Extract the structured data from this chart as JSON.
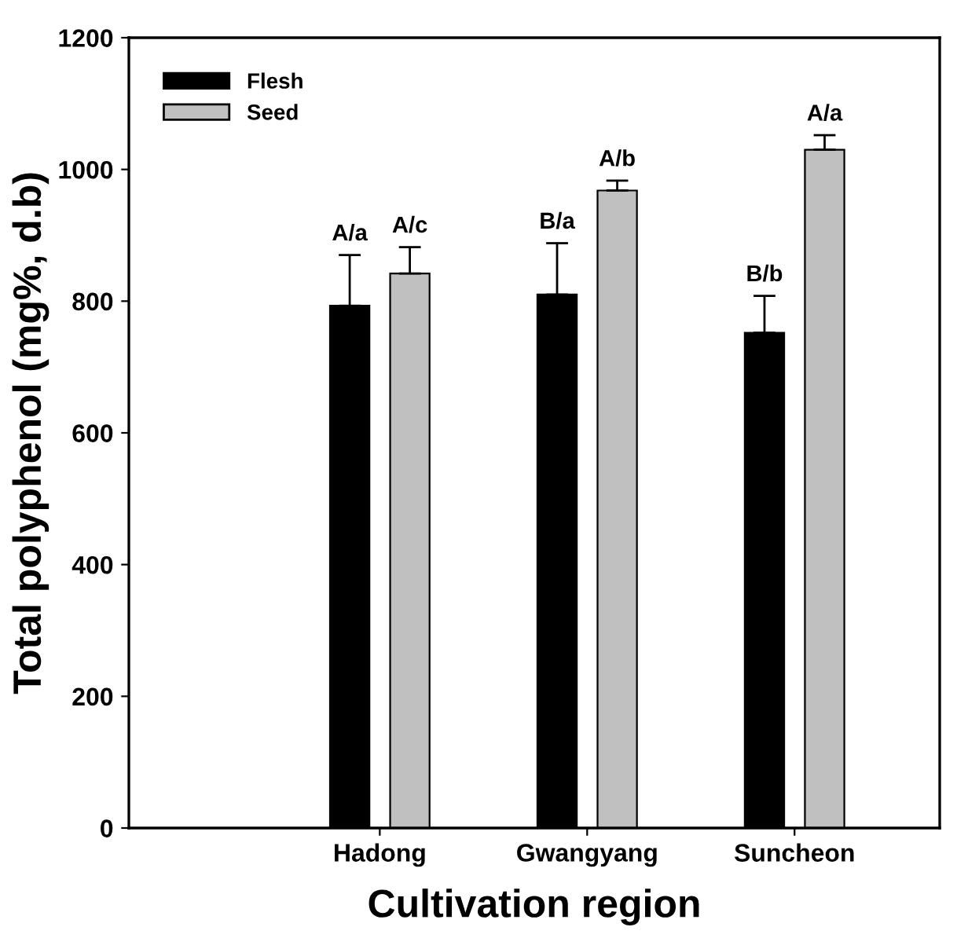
{
  "chart_data": {
    "type": "bar",
    "xlabel": "Cultivation region",
    "ylabel": "Total polyphenol (mg%, d.b)",
    "categories": [
      "Hadong",
      "Gwangyang",
      "Suncheon"
    ],
    "ylim": [
      0,
      1200
    ],
    "yticks": [
      0,
      200,
      400,
      600,
      800,
      1000,
      1200
    ],
    "grid": false,
    "legend": "top left",
    "series": [
      {
        "name": "Flesh",
        "color": "#000000",
        "values": [
          793,
          810,
          752
        ],
        "errors": [
          [
            793,
            870
          ],
          [
            810,
            888
          ],
          [
            752,
            808
          ]
        ],
        "value_labels": [
          "A/a",
          "B/a",
          "B/b"
        ]
      },
      {
        "name": "Seed",
        "color": "#c0c0c0",
        "values": [
          842,
          968,
          1030
        ],
        "errors": [
          [
            842,
            882
          ],
          [
            968,
            983
          ],
          [
            1030,
            1052
          ]
        ],
        "value_labels": [
          "A/c",
          "A/b",
          "A/a"
        ]
      }
    ]
  }
}
